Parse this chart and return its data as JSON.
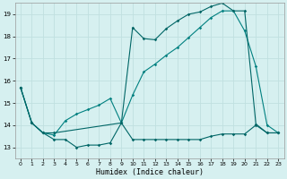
{
  "title": "",
  "xlabel": "Humidex (Indice chaleur)",
  "ylabel": "",
  "bg_color": "#d6f0f0",
  "grid_color": "#c0e0e0",
  "line_color_dark": "#006666",
  "line_color_mid": "#008080",
  "xlim": [
    -0.5,
    23.5
  ],
  "ylim": [
    12.5,
    19.5
  ],
  "yticks": [
    13,
    14,
    15,
    16,
    17,
    18,
    19
  ],
  "xticks": [
    0,
    1,
    2,
    3,
    4,
    5,
    6,
    7,
    8,
    9,
    10,
    11,
    12,
    13,
    14,
    15,
    16,
    17,
    18,
    19,
    20,
    21,
    22,
    23
  ],
  "series1_x": [
    0,
    1,
    2,
    3,
    4,
    5,
    6,
    7,
    8,
    9,
    10,
    11,
    12,
    13,
    14,
    15,
    16,
    17,
    18,
    19,
    20,
    21,
    22,
    23
  ],
  "series1_y": [
    15.7,
    14.1,
    13.65,
    13.35,
    13.35,
    13.0,
    13.1,
    13.1,
    13.2,
    14.1,
    13.35,
    13.35,
    13.35,
    13.35,
    13.35,
    13.35,
    13.35,
    13.5,
    13.6,
    13.6,
    13.6,
    14.0,
    13.65,
    13.65
  ],
  "series2_x": [
    0,
    1,
    2,
    3,
    4,
    5,
    6,
    7,
    8,
    9,
    10,
    11,
    12,
    13,
    14,
    15,
    16,
    17,
    18,
    19,
    20,
    21,
    22,
    23
  ],
  "series2_y": [
    15.7,
    14.1,
    13.65,
    13.55,
    14.2,
    14.5,
    14.7,
    14.9,
    15.2,
    14.1,
    15.35,
    16.4,
    16.75,
    17.15,
    17.5,
    17.95,
    18.4,
    18.85,
    19.15,
    19.15,
    18.25,
    16.65,
    14.0,
    13.65
  ],
  "series3_x": [
    0,
    1,
    2,
    3,
    9,
    10,
    11,
    12,
    13,
    14,
    15,
    16,
    17,
    18,
    19,
    20,
    21,
    22,
    23
  ],
  "series3_y": [
    15.7,
    14.1,
    13.65,
    13.65,
    14.1,
    18.4,
    17.9,
    17.85,
    18.35,
    18.7,
    19.0,
    19.1,
    19.35,
    19.5,
    19.15,
    19.15,
    14.05,
    13.65,
    13.65
  ]
}
